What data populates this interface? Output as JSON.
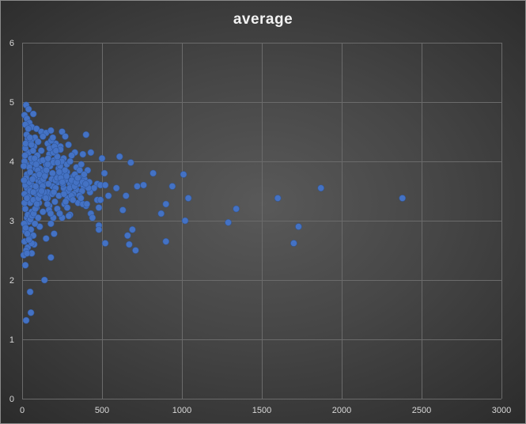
{
  "chart_data": {
    "type": "scatter",
    "title": "average",
    "xlim": [
      0,
      3000
    ],
    "ylim": [
      0,
      6
    ],
    "xticks": [
      0,
      500,
      1000,
      1500,
      2000,
      2500,
      3000
    ],
    "yticks": [
      0,
      1,
      2,
      3,
      4,
      5,
      6
    ],
    "grid": true,
    "legend": "none",
    "marker_color": "#4472c4",
    "background_color": "#404040",
    "series": [
      {
        "points": [
          [
            25,
            4.95
          ],
          [
            40,
            4.88
          ],
          [
            70,
            4.8
          ],
          [
            15,
            4.78
          ],
          [
            30,
            4.72
          ],
          [
            45,
            4.65
          ],
          [
            20,
            4.62
          ],
          [
            60,
            4.58
          ],
          [
            90,
            4.55
          ],
          [
            120,
            4.5
          ],
          [
            150,
            4.48
          ],
          [
            180,
            4.52
          ],
          [
            250,
            4.5
          ],
          [
            270,
            4.42
          ],
          [
            400,
            4.45
          ],
          [
            130,
            4.42
          ],
          [
            80,
            4.4
          ],
          [
            35,
            4.38
          ],
          [
            55,
            4.35
          ],
          [
            100,
            4.33
          ],
          [
            160,
            4.3
          ],
          [
            210,
            4.3
          ],
          [
            240,
            4.25
          ],
          [
            290,
            4.28
          ],
          [
            330,
            4.15
          ],
          [
            380,
            4.12
          ],
          [
            430,
            4.15
          ],
          [
            310,
            4.1
          ],
          [
            260,
            4.05
          ],
          [
            200,
            4.02
          ],
          [
            110,
            4.0
          ],
          [
            65,
            3.98
          ],
          [
            25,
            3.95
          ],
          [
            45,
            3.9
          ],
          [
            85,
            3.88
          ],
          [
            140,
            3.85
          ],
          [
            190,
            3.8
          ],
          [
            230,
            3.78
          ],
          [
            280,
            3.82
          ],
          [
            320,
            3.75
          ],
          [
            360,
            3.72
          ],
          [
            390,
            3.7
          ],
          [
            420,
            3.65
          ],
          [
            470,
            3.62
          ],
          [
            500,
            4.05
          ],
          [
            515,
            3.8
          ],
          [
            590,
            3.55
          ],
          [
            610,
            4.08
          ],
          [
            650,
            3.42
          ],
          [
            680,
            3.98
          ],
          [
            720,
            3.58
          ],
          [
            760,
            3.6
          ],
          [
            820,
            3.8
          ],
          [
            940,
            3.58
          ],
          [
            1010,
            3.78
          ],
          [
            1040,
            3.38
          ],
          [
            900,
            3.28
          ],
          [
            870,
            3.12
          ],
          [
            490,
            3.6
          ],
          [
            520,
            3.6
          ],
          [
            540,
            3.42
          ],
          [
            630,
            3.18
          ],
          [
            400,
            3.25
          ],
          [
            430,
            3.12
          ],
          [
            470,
            3.35
          ],
          [
            480,
            3.22
          ],
          [
            490,
            3.35
          ],
          [
            350,
            3.3
          ],
          [
            380,
            3.28
          ],
          [
            300,
            3.1
          ],
          [
            250,
            3.05
          ],
          [
            220,
            3.2
          ],
          [
            170,
            3.25
          ],
          [
            130,
            3.15
          ],
          [
            90,
            3.22
          ],
          [
            50,
            3.3
          ],
          [
            20,
            3.2
          ],
          [
            30,
            3.05
          ],
          [
            40,
            2.98
          ],
          [
            55,
            2.85
          ],
          [
            20,
            2.82
          ],
          [
            70,
            2.75
          ],
          [
            15,
            2.65
          ],
          [
            35,
            2.55
          ],
          [
            25,
            2.5
          ],
          [
            60,
            2.45
          ],
          [
            10,
            2.42
          ],
          [
            480,
            2.92
          ],
          [
            480,
            2.85
          ],
          [
            660,
            2.75
          ],
          [
            690,
            2.85
          ],
          [
            520,
            2.62
          ],
          [
            670,
            2.6
          ],
          [
            710,
            2.5
          ],
          [
            900,
            2.65
          ],
          [
            1020,
            3.0
          ],
          [
            1290,
            2.97
          ],
          [
            1340,
            3.2
          ],
          [
            1600,
            3.38
          ],
          [
            1700,
            2.62
          ],
          [
            1730,
            2.9
          ],
          [
            1870,
            3.55
          ],
          [
            2380,
            3.38
          ],
          [
            140,
            2.0
          ],
          [
            180,
            2.38
          ],
          [
            50,
            1.8
          ],
          [
            55,
            1.45
          ],
          [
            25,
            1.32
          ],
          [
            20,
            2.25
          ],
          [
            180,
            2.95
          ],
          [
            200,
            2.78
          ],
          [
            150,
            2.7
          ],
          [
            110,
            2.9
          ],
          [
            75,
            2.6
          ],
          [
            90,
            3.45
          ],
          [
            260,
            3.55
          ],
          [
            300,
            3.62
          ],
          [
            340,
            3.52
          ],
          [
            230,
            3.42
          ],
          [
            190,
            3.58
          ],
          [
            140,
            3.62
          ],
          [
            100,
            3.68
          ],
          [
            60,
            3.6
          ],
          [
            30,
            3.55
          ],
          [
            15,
            3.45
          ],
          [
            40,
            3.4
          ],
          [
            70,
            3.35
          ],
          [
            120,
            3.42
          ],
          [
            160,
            3.48
          ],
          [
            210,
            3.55
          ],
          [
            270,
            3.68
          ],
          [
            240,
            3.88
          ],
          [
            150,
            3.95
          ],
          [
            95,
            4.1
          ],
          [
            40,
            4.15
          ],
          [
            20,
            4.22
          ],
          [
            75,
            4.25
          ],
          [
            120,
            4.18
          ],
          [
            170,
            4.12
          ],
          [
            220,
            4.08
          ],
          [
            280,
            3.95
          ],
          [
            340,
            3.9
          ],
          [
            370,
            3.95
          ],
          [
            410,
            3.85
          ],
          [
            450,
            3.55
          ],
          [
            320,
            3.45
          ],
          [
            285,
            3.38
          ],
          [
            205,
            3.32
          ],
          [
            160,
            3.38
          ],
          [
            105,
            3.3
          ],
          [
            60,
            3.15
          ],
          [
            35,
            3.1
          ],
          [
            20,
            3.6
          ],
          [
            30,
            3.78
          ],
          [
            50,
            3.82
          ],
          [
            80,
            3.75
          ],
          [
            115,
            3.72
          ],
          [
            145,
            3.78
          ],
          [
            185,
            3.7
          ],
          [
            15,
            4.0
          ],
          [
            55,
            4.05
          ],
          [
            130,
            4.02
          ],
          [
            175,
            3.92
          ],
          [
            195,
            3.98
          ],
          [
            225,
            3.65
          ],
          [
            255,
            3.62
          ],
          [
            310,
            3.68
          ],
          [
            350,
            3.62
          ],
          [
            385,
            3.58
          ],
          [
            425,
            3.48
          ],
          [
            45,
            3.65
          ],
          [
            25,
            3.72
          ],
          [
            65,
            3.7
          ],
          [
            95,
            3.52
          ],
          [
            125,
            3.55
          ],
          [
            165,
            3.62
          ],
          [
            15,
            3.3
          ],
          [
            30,
            3.38
          ],
          [
            50,
            3.5
          ],
          [
            70,
            3.48
          ],
          [
            85,
            3.58
          ],
          [
            110,
            3.88
          ],
          [
            135,
            3.82
          ],
          [
            160,
            3.95
          ],
          [
            195,
            4.15
          ],
          [
            240,
            4.2
          ],
          [
            300,
            4.0
          ],
          [
            330,
            3.78
          ],
          [
            360,
            3.85
          ],
          [
            405,
            3.28
          ],
          [
            440,
            3.05
          ],
          [
            375,
            3.5
          ],
          [
            415,
            3.55
          ],
          [
            265,
            3.28
          ],
          [
            235,
            3.12
          ],
          [
            195,
            3.05
          ],
          [
            100,
            3.05
          ],
          [
            80,
            2.95
          ],
          [
            45,
            2.7
          ],
          [
            60,
            2.62
          ],
          [
            30,
            2.45
          ],
          [
            10,
            3.92
          ],
          [
            12,
            3.68
          ],
          [
            18,
            4.1
          ],
          [
            22,
            4.3
          ],
          [
            28,
            4.45
          ],
          [
            38,
            4.55
          ],
          [
            48,
            4.4
          ],
          [
            58,
            4.28
          ],
          [
            68,
            4.18
          ],
          [
            78,
            4.05
          ],
          [
            88,
            3.95
          ],
          [
            98,
            3.85
          ],
          [
            108,
            3.78
          ],
          [
            118,
            3.65
          ],
          [
            128,
            3.58
          ],
          [
            138,
            3.48
          ],
          [
            148,
            3.38
          ],
          [
            158,
            3.28
          ],
          [
            168,
            3.18
          ],
          [
            178,
            3.12
          ],
          [
            188,
            3.45
          ],
          [
            198,
            3.48
          ],
          [
            208,
            3.68
          ],
          [
            218,
            3.72
          ],
          [
            228,
            3.88
          ],
          [
            238,
            3.92
          ],
          [
            248,
            4.0
          ],
          [
            258,
            3.8
          ],
          [
            268,
            3.85
          ],
          [
            278,
            3.75
          ],
          [
            288,
            3.5
          ],
          [
            298,
            3.55
          ],
          [
            308,
            3.42
          ],
          [
            318,
            3.35
          ],
          [
            328,
            3.58
          ],
          [
            338,
            3.65
          ],
          [
            348,
            3.72
          ],
          [
            358,
            3.42
          ],
          [
            368,
            3.38
          ],
          [
            378,
            3.65
          ],
          [
            388,
            3.78
          ],
          [
            398,
            3.62
          ],
          [
            12,
            2.95
          ],
          [
            22,
            2.88
          ],
          [
            32,
            2.78
          ],
          [
            42,
            2.68
          ],
          [
            52,
            3.02
          ],
          [
            62,
            3.08
          ],
          [
            72,
            3.12
          ],
          [
            82,
            3.2
          ],
          [
            92,
            3.28
          ],
          [
            102,
            3.38
          ],
          [
            112,
            3.45
          ],
          [
            122,
            3.5
          ],
          [
            132,
            3.7
          ],
          [
            142,
            3.75
          ],
          [
            152,
            3.85
          ],
          [
            162,
            4.05
          ],
          [
            172,
            4.22
          ],
          [
            182,
            4.35
          ],
          [
            192,
            4.4
          ],
          [
            202,
            4.25
          ],
          [
            212,
            4.18
          ],
          [
            222,
            3.98
          ],
          [
            232,
            3.82
          ],
          [
            242,
            3.72
          ],
          [
            252,
            3.65
          ],
          [
            262,
            3.45
          ],
          [
            272,
            3.32
          ],
          [
            282,
            3.22
          ],
          [
            292,
            3.08
          ]
        ]
      }
    ]
  }
}
